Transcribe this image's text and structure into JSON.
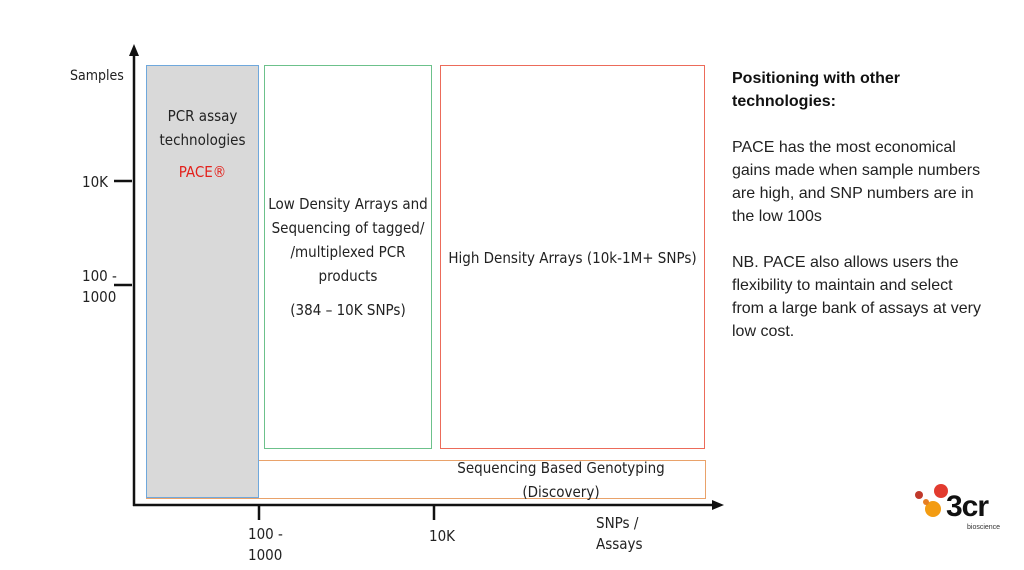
{
  "colors": {
    "pcr_fill": "#d9d9d9",
    "pcr_border": "#6fa8dc",
    "low_border": "#6cc18b",
    "high_border": "#ec6b5a",
    "seq_border": "#e9a26a",
    "pace_red": "#e3211c",
    "axis": "#111111"
  },
  "y_axis": {
    "label": "Samples",
    "ticks": [
      "10K",
      "100 -\n1000"
    ]
  },
  "x_axis": {
    "label": "SNPs /\nAssays",
    "ticks": [
      "100 -\n1000",
      "10K"
    ]
  },
  "boxes": {
    "pcr": {
      "title": "PCR assay\ntechnologies",
      "brand": "PACE®"
    },
    "low_density": {
      "title": "Low Density Arrays and\nSequencing of tagged/\n/multiplexed PCR\nproducts",
      "note": "(384 – 10K SNPs)"
    },
    "high_density": {
      "title": "High Density Arrays (10k-1M+ SNPs)"
    },
    "sequencing": {
      "title": "Sequencing Based Genotyping (Discovery)"
    }
  },
  "sidebar": {
    "heading": "Positioning with other\ntechnologies:",
    "paragraph1": "PACE has the most economical\ngains made when sample numbers\nare high, and SNP numbers are in\nthe low 100s",
    "paragraph2": "NB.  PACE also allows users the\nflexibility to maintain and select\nfrom a large bank of assays at very\nlow cost."
  },
  "logo": {
    "wordmark": "3cr",
    "subtitle": "bioscience",
    "icon": "molecule-dots-icon"
  }
}
